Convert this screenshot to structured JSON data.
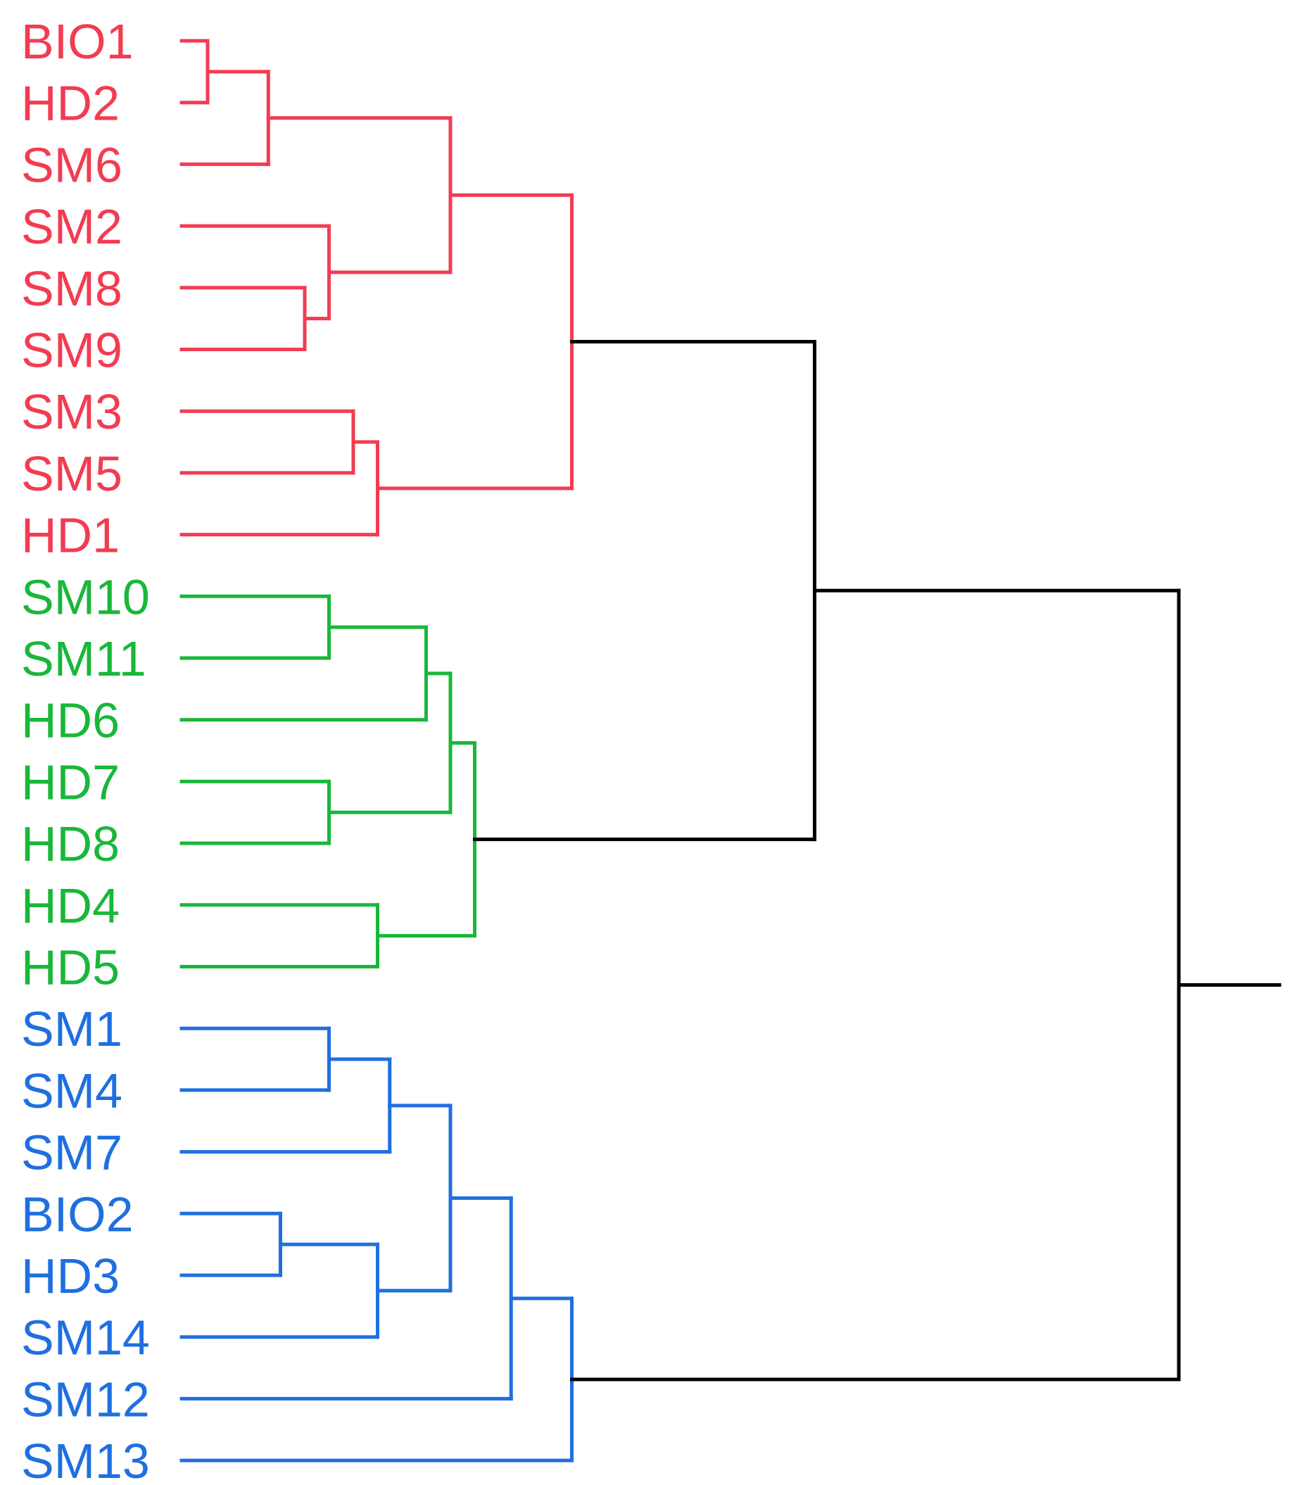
{
  "colors": {
    "cluster_red": "#f23c52",
    "cluster_green": "#19b73a",
    "cluster_blue": "#1f6fe0",
    "root": "#000000",
    "background": "#ffffff"
  },
  "dendrogram": {
    "orientation": "leaves-left, root-right",
    "leaves": [
      {
        "label": "BIO1",
        "cluster": "red"
      },
      {
        "label": "HD2",
        "cluster": "red"
      },
      {
        "label": "SM6",
        "cluster": "red"
      },
      {
        "label": "SM2",
        "cluster": "red"
      },
      {
        "label": "SM8",
        "cluster": "red"
      },
      {
        "label": "SM9",
        "cluster": "red"
      },
      {
        "label": "SM3",
        "cluster": "red"
      },
      {
        "label": "SM5",
        "cluster": "red"
      },
      {
        "label": "HD1",
        "cluster": "red"
      },
      {
        "label": "SM10",
        "cluster": "green"
      },
      {
        "label": "SM11",
        "cluster": "green"
      },
      {
        "label": "HD6",
        "cluster": "green"
      },
      {
        "label": "HD7",
        "cluster": "green"
      },
      {
        "label": "HD8",
        "cluster": "green"
      },
      {
        "label": "HD4",
        "cluster": "green"
      },
      {
        "label": "HD5",
        "cluster": "green"
      },
      {
        "label": "SM1",
        "cluster": "blue"
      },
      {
        "label": "SM4",
        "cluster": "blue"
      },
      {
        "label": "SM7",
        "cluster": "blue"
      },
      {
        "label": "BIO2",
        "cluster": "blue"
      },
      {
        "label": "HD3",
        "cluster": "blue"
      },
      {
        "label": "SM14",
        "cluster": "blue"
      },
      {
        "label": "SM12",
        "cluster": "blue"
      },
      {
        "label": "SM13",
        "cluster": "blue"
      }
    ],
    "tree": {
      "h": 1.0,
      "color": "root",
      "children": [
        {
          "h": 0.7,
          "color": "root",
          "children": [
            {
              "h": 0.5,
              "color": "red",
              "children": [
                {
                  "h": 0.4,
                  "color": "red",
                  "children": [
                    {
                      "h": 0.25,
                      "color": "red",
                      "children": [
                        {
                          "h": 0.2,
                          "color": "red",
                          "children": [
                            {
                              "leaf": 0
                            },
                            {
                              "leaf": 1
                            }
                          ]
                        },
                        {
                          "leaf": 2
                        }
                      ]
                    },
                    {
                      "h": 0.3,
                      "color": "red",
                      "children": [
                        {
                          "leaf": 3
                        },
                        {
                          "h": 0.28,
                          "color": "red",
                          "children": [
                            {
                              "leaf": 4
                            },
                            {
                              "leaf": 5
                            }
                          ]
                        }
                      ]
                    }
                  ]
                },
                {
                  "h": 0.34,
                  "color": "red",
                  "children": [
                    {
                      "h": 0.32,
                      "color": "red",
                      "children": [
                        {
                          "leaf": 6
                        },
                        {
                          "leaf": 7
                        }
                      ]
                    },
                    {
                      "leaf": 8
                    }
                  ]
                }
              ]
            },
            {
              "h": 0.42,
              "color": "green",
              "children": [
                {
                  "h": 0.4,
                  "color": "green",
                  "children": [
                    {
                      "h": 0.38,
                      "color": "green",
                      "children": [
                        {
                          "h": 0.3,
                          "color": "green",
                          "children": [
                            {
                              "leaf": 9
                            },
                            {
                              "leaf": 10
                            }
                          ]
                        },
                        {
                          "leaf": 11
                        }
                      ]
                    },
                    {
                      "h": 0.3,
                      "color": "green",
                      "children": [
                        {
                          "leaf": 12
                        },
                        {
                          "leaf": 13
                        }
                      ]
                    }
                  ]
                },
                {
                  "h": 0.34,
                  "color": "green",
                  "children": [
                    {
                      "leaf": 14
                    },
                    {
                      "leaf": 15
                    }
                  ]
                }
              ]
            }
          ]
        },
        {
          "h": 0.5,
          "color": "blue",
          "children": [
            {
              "h": 0.45,
              "color": "blue",
              "children": [
                {
                  "h": 0.4,
                  "color": "blue",
                  "children": [
                    {
                      "h": 0.35,
                      "color": "blue",
                      "children": [
                        {
                          "h": 0.3,
                          "color": "blue",
                          "children": [
                            {
                              "leaf": 16
                            },
                            {
                              "leaf": 17
                            }
                          ]
                        },
                        {
                          "leaf": 18
                        }
                      ]
                    },
                    {
                      "h": 0.34,
                      "color": "blue",
                      "children": [
                        {
                          "h": 0.26,
                          "color": "blue",
                          "children": [
                            {
                              "leaf": 19
                            },
                            {
                              "leaf": 20
                            }
                          ]
                        },
                        {
                          "leaf": 21
                        }
                      ]
                    }
                  ]
                },
                {
                  "leaf": 22
                }
              ]
            },
            {
              "leaf": 23
            }
          ]
        }
      ]
    }
  }
}
